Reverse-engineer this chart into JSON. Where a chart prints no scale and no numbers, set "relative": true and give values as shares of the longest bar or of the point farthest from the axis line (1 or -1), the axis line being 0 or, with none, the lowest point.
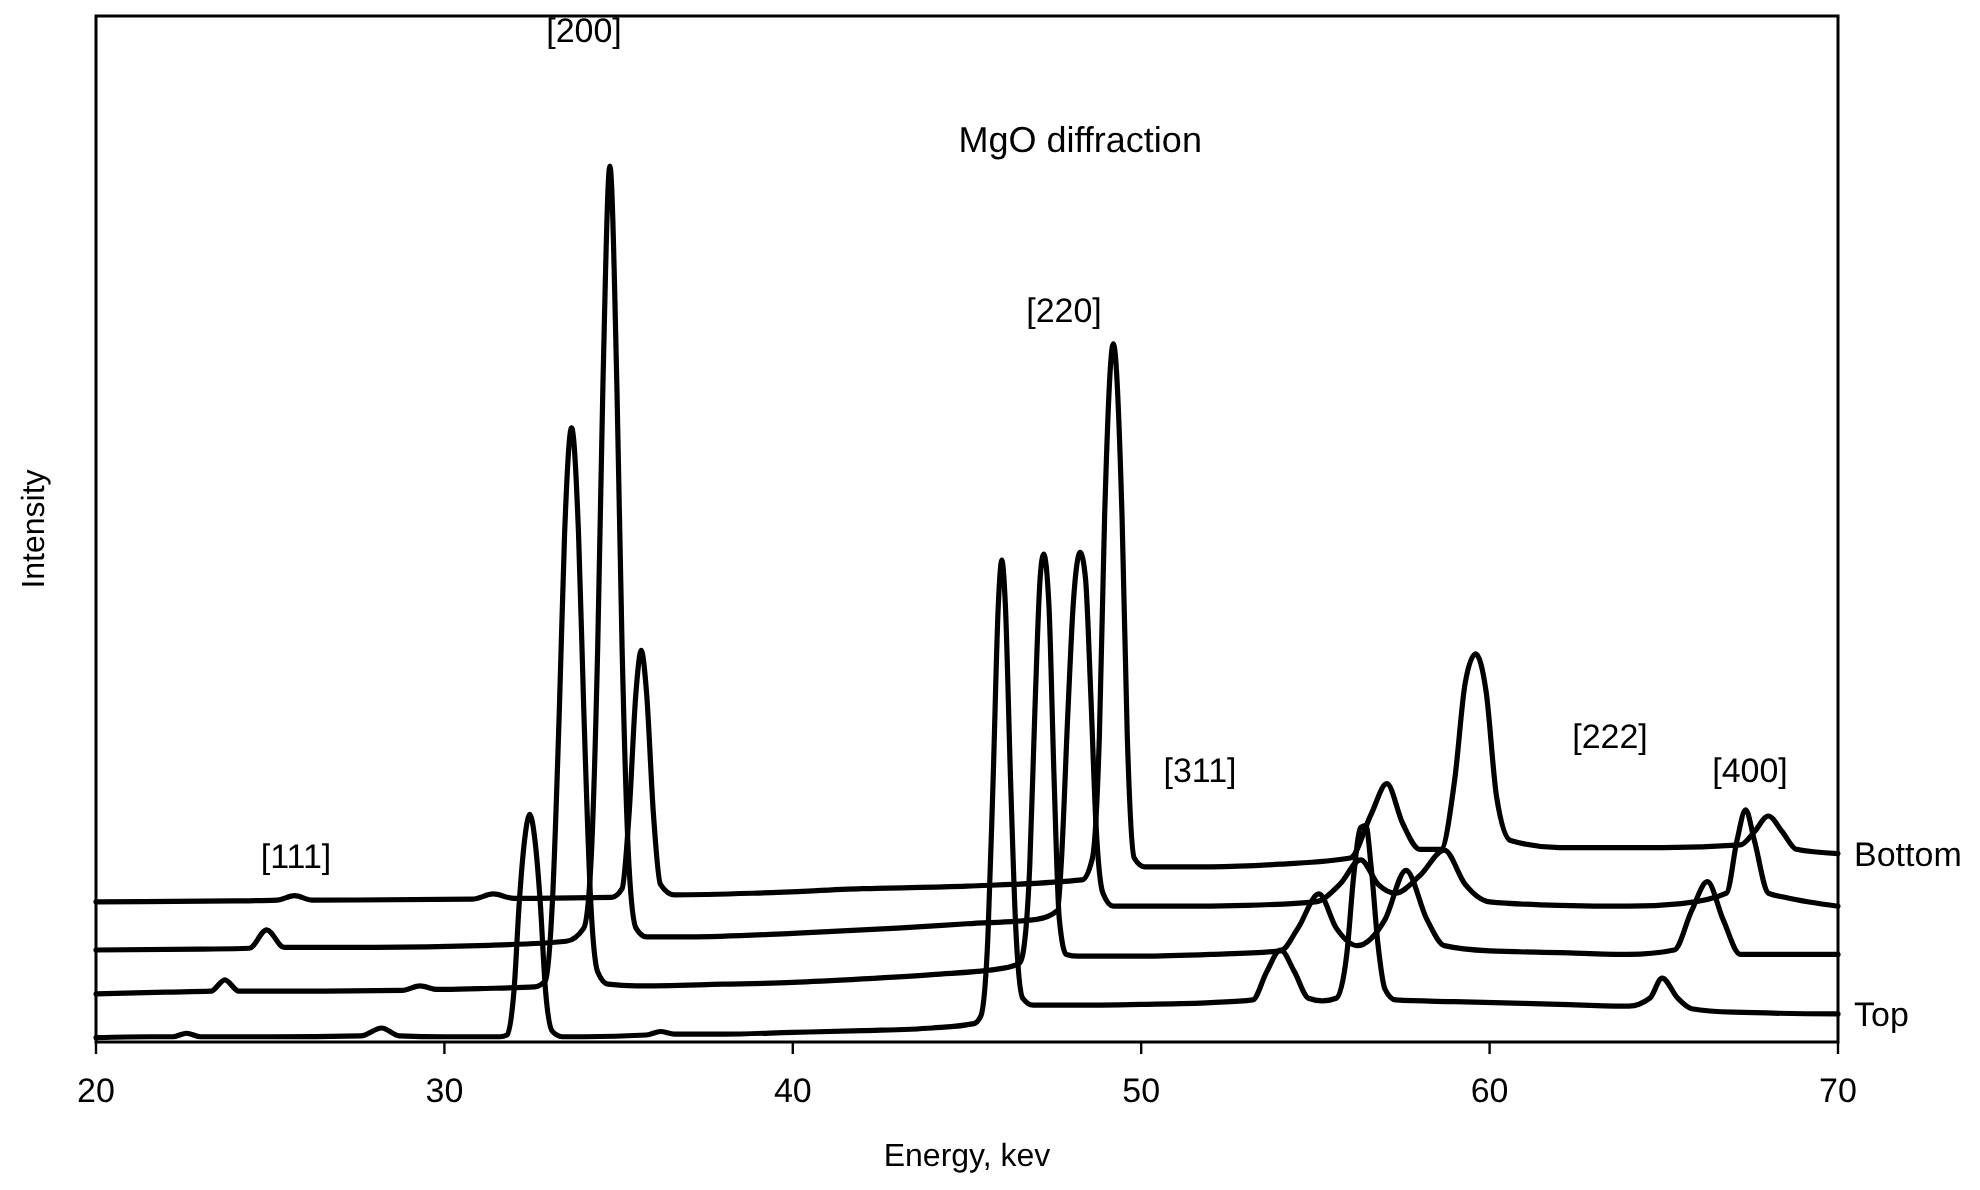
{
  "chart_data": {
    "type": "line",
    "title": "MgO diffraction",
    "xlabel": "Energy, kev",
    "ylabel": "Intensity",
    "relative": true,
    "xlim": [
      20,
      70
    ],
    "xticks": [
      20,
      30,
      40,
      50,
      60,
      70
    ],
    "grid": false,
    "marker": "none",
    "line_style": "solid",
    "annotations": [
      "[111]",
      "[200]",
      "[220]",
      "[311]",
      "[222]",
      "[400]"
    ],
    "series": [
      {
        "name": "Top",
        "color": "#000000",
        "x": [
          20,
          21.5,
          22.2,
          22.6,
          23,
          25,
          27.6,
          28.2,
          28.7,
          30,
          31.6,
          31.8,
          32,
          32.15,
          32.3,
          32.45,
          32.6,
          32.75,
          32.9,
          33.1,
          33.4,
          34,
          35.8,
          36.2,
          36.6,
          38,
          40,
          42,
          44,
          45.2,
          45.4,
          45.6,
          45.75,
          45.9,
          46,
          46.1,
          46.25,
          46.4,
          46.6,
          46.9,
          48,
          50,
          52,
          53.2,
          53.6,
          54,
          54.4,
          54.8,
          55.2,
          55.6,
          55.9,
          56.1,
          56.3,
          56.45,
          56.6,
          56.8,
          57,
          57.3,
          59,
          62,
          64,
          64.6,
          64.95,
          65.4,
          65.8,
          67,
          70
        ],
        "values": [
          0.005,
          0.006,
          0.006,
          0.01,
          0.006,
          0.006,
          0.007,
          0.016,
          0.007,
          0.006,
          0.006,
          0.008,
          0.06,
          0.16,
          0.23,
          0.26,
          0.23,
          0.16,
          0.06,
          0.012,
          0.006,
          0.006,
          0.008,
          0.012,
          0.009,
          0.009,
          0.011,
          0.013,
          0.016,
          0.021,
          0.03,
          0.12,
          0.3,
          0.5,
          0.55,
          0.5,
          0.3,
          0.13,
          0.05,
          0.042,
          0.042,
          0.043,
          0.045,
          0.048,
          0.08,
          0.105,
          0.08,
          0.05,
          0.047,
          0.05,
          0.1,
          0.19,
          0.245,
          0.247,
          0.2,
          0.11,
          0.06,
          0.048,
          0.046,
          0.043,
          0.041,
          0.05,
          0.073,
          0.05,
          0.038,
          0.034,
          0.032
        ]
      },
      {
        "color": "#000000",
        "x": [
          20,
          22,
          23.3,
          23.7,
          24.1,
          26,
          28.8,
          29.3,
          29.8,
          31,
          32.6,
          32.9,
          33.1,
          33.3,
          33.45,
          33.65,
          33.85,
          34,
          34.2,
          34.4,
          34.7,
          35.5,
          38,
          40,
          42,
          44,
          46,
          46.5,
          46.6,
          46.8,
          46.95,
          47.1,
          47.2,
          47.35,
          47.5,
          47.65,
          47.85,
          48.2,
          50,
          52,
          54,
          54.5,
          55.1,
          55.6,
          56.2,
          57,
          57.6,
          58.2,
          58.7,
          60,
          62,
          64,
          65.3,
          65.8,
          66.25,
          66.7,
          67.2,
          68,
          70
        ],
        "values": [
          0.055,
          0.057,
          0.058,
          0.071,
          0.058,
          0.058,
          0.059,
          0.064,
          0.06,
          0.061,
          0.063,
          0.07,
          0.16,
          0.38,
          0.58,
          0.701,
          0.58,
          0.38,
          0.16,
          0.08,
          0.066,
          0.064,
          0.066,
          0.068,
          0.072,
          0.077,
          0.084,
          0.09,
          0.1,
          0.2,
          0.38,
          0.53,
          0.557,
          0.5,
          0.3,
          0.14,
          0.1,
          0.098,
          0.098,
          0.1,
          0.104,
          0.13,
          0.169,
          0.13,
          0.11,
          0.14,
          0.196,
          0.14,
          0.11,
          0.104,
          0.102,
          0.1,
          0.105,
          0.15,
          0.183,
          0.14,
          0.1,
          0.1,
          0.1
        ]
      },
      {
        "color": "#000000",
        "x": [
          20,
          23,
          24.4,
          24.9,
          25.4,
          28,
          31,
          33.5,
          34,
          34.2,
          34.4,
          34.55,
          34.75,
          34.95,
          35.1,
          35.3,
          35.5,
          35.8,
          37,
          40,
          43,
          45,
          47,
          47.6,
          47.7,
          47.9,
          48.05,
          48.25,
          48.4,
          48.55,
          48.7,
          48.9,
          49.2,
          51,
          53,
          55,
          55.7,
          56.3,
          56.8,
          57.3,
          58,
          58.7,
          59.3,
          60,
          62,
          64,
          65.5,
          66.8,
          67.1,
          67.35,
          67.6,
          68,
          68.5,
          70
        ],
        "values": [
          0.105,
          0.106,
          0.107,
          0.128,
          0.108,
          0.108,
          0.11,
          0.115,
          0.13,
          0.2,
          0.45,
          0.75,
          1,
          0.75,
          0.45,
          0.2,
          0.13,
          0.12,
          0.12,
          0.124,
          0.13,
          0.135,
          0.14,
          0.15,
          0.2,
          0.38,
          0.5,
          0.559,
          0.53,
          0.4,
          0.25,
          0.17,
          0.155,
          0.155,
          0.156,
          0.16,
          0.18,
          0.208,
          0.18,
          0.17,
          0.19,
          0.219,
          0.18,
          0.16,
          0.156,
          0.155,
          0.158,
          0.17,
          0.23,
          0.265,
          0.23,
          0.17,
          0.165,
          0.155
        ]
      },
      {
        "name": "Bottom",
        "color": "#000000",
        "x": [
          20,
          24,
          25.2,
          25.7,
          26.2,
          30.8,
          31.4,
          32,
          34.8,
          35.1,
          35.3,
          35.5,
          35.65,
          35.8,
          36,
          36.2,
          36.6,
          39,
          42,
          45,
          48.3,
          48.6,
          48.8,
          48.95,
          49.2,
          49.45,
          49.6,
          49.8,
          50.1,
          52,
          54,
          56,
          56.6,
          57.05,
          57.5,
          58,
          58.6,
          59,
          59.3,
          59.6,
          59.9,
          60.2,
          60.6,
          62,
          65,
          67.2,
          67.6,
          68,
          68.4,
          68.8,
          70
        ],
        "values": [
          0.16,
          0.161,
          0.162,
          0.167,
          0.162,
          0.163,
          0.169,
          0.164,
          0.165,
          0.175,
          0.26,
          0.4,
          0.447,
          0.4,
          0.26,
          0.18,
          0.168,
          0.17,
          0.175,
          0.178,
          0.185,
          0.21,
          0.35,
          0.6,
          0.797,
          0.6,
          0.35,
          0.21,
          0.2,
          0.2,
          0.203,
          0.21,
          0.26,
          0.295,
          0.25,
          0.22,
          0.22,
          0.3,
          0.41,
          0.443,
          0.4,
          0.28,
          0.23,
          0.222,
          0.222,
          0.225,
          0.24,
          0.258,
          0.24,
          0.22,
          0.215
        ]
      }
    ]
  }
}
